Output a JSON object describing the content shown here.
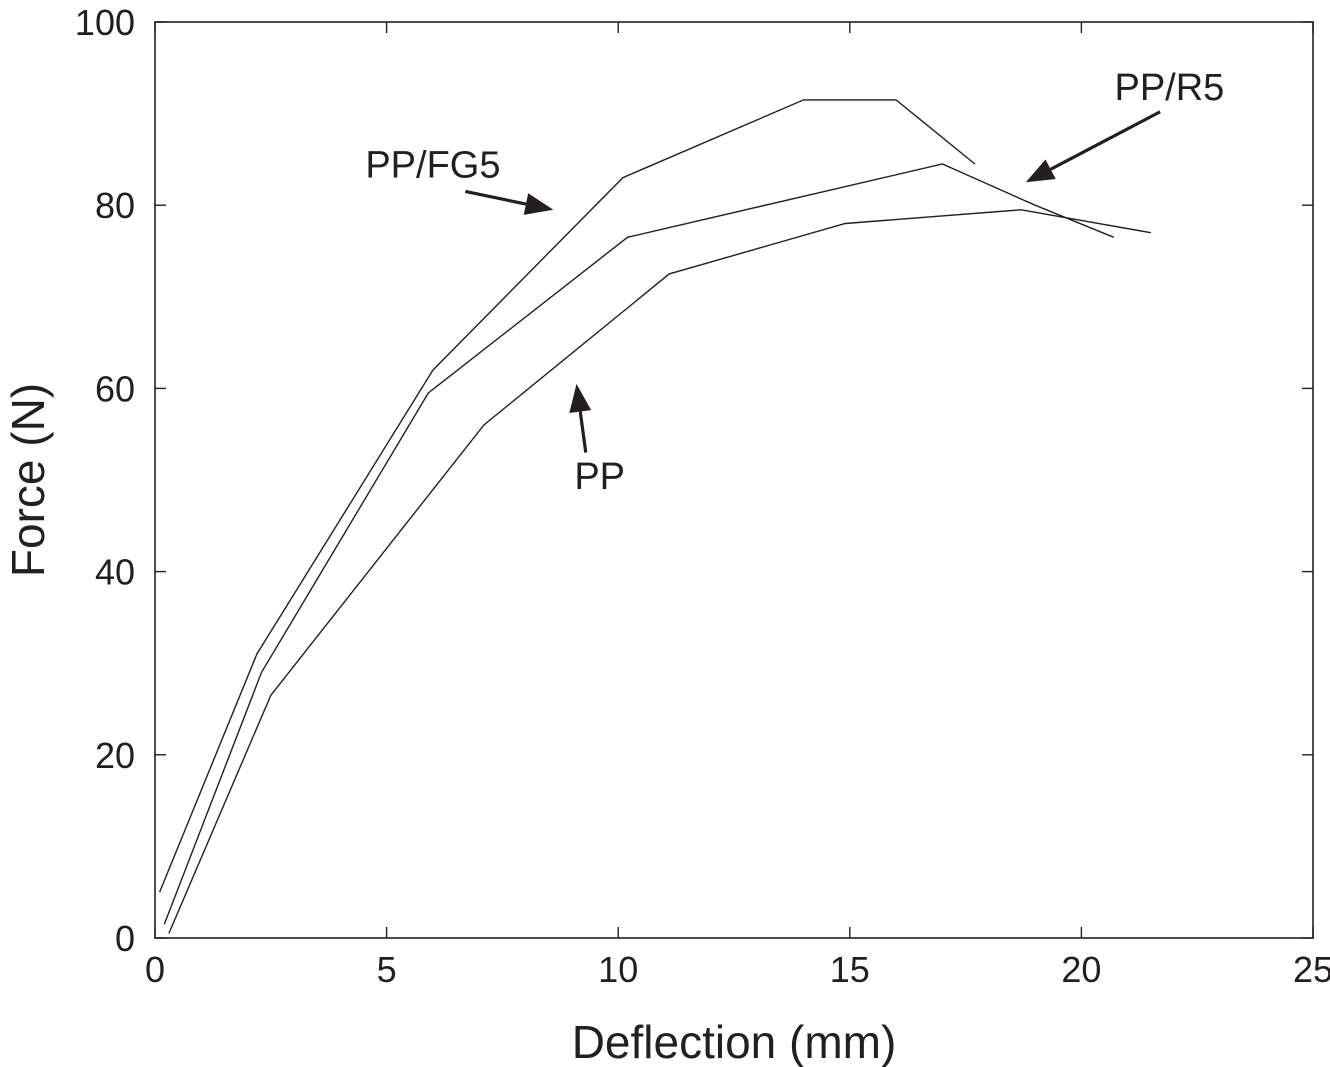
{
  "chart_data": {
    "type": "line",
    "xlabel": "Deflection (mm)",
    "ylabel": "Force (N)",
    "xlim": [
      0,
      25
    ],
    "ylim": [
      0,
      100
    ],
    "x_ticks": [
      "0",
      "5",
      "10",
      "15",
      "20",
      "25"
    ],
    "y_ticks": [
      "0",
      "20",
      "40",
      "60",
      "80",
      "100"
    ],
    "grid": false,
    "legend": "none (series identified by arrow annotations)",
    "series": [
      {
        "name": "PP/FG5",
        "points": [
          [
            0.1,
            5.0
          ],
          [
            2.2,
            31.0
          ],
          [
            6.0,
            62.0
          ],
          [
            10.1,
            83.0
          ],
          [
            14.0,
            91.5
          ],
          [
            16.0,
            91.5
          ],
          [
            17.7,
            84.5
          ]
        ]
      },
      {
        "name": "PP/R5",
        "points": [
          [
            0.2,
            1.5
          ],
          [
            2.3,
            29.0
          ],
          [
            5.9,
            59.5
          ],
          [
            10.2,
            76.5
          ],
          [
            17.0,
            84.5
          ],
          [
            19.0,
            80.0
          ],
          [
            20.7,
            76.5
          ]
        ]
      },
      {
        "name": "PP",
        "points": [
          [
            0.3,
            0.5
          ],
          [
            2.5,
            26.5
          ],
          [
            7.1,
            56.0
          ],
          [
            11.1,
            72.5
          ],
          [
            14.9,
            78.0
          ],
          [
            18.7,
            79.5
          ],
          [
            21.5,
            77.0
          ]
        ]
      }
    ],
    "annotations": [
      {
        "text": "PP/FG5",
        "label_at": [
          6.0,
          83.0
        ],
        "arrow_from": [
          6.7,
          81.5
        ],
        "arrow_to": [
          8.6,
          79.5
        ]
      },
      {
        "text": "PP/R5",
        "label_at": [
          21.9,
          91.5
        ],
        "arrow_from": [
          21.7,
          90.2
        ],
        "arrow_to": [
          18.8,
          82.5
        ]
      },
      {
        "text": "PP",
        "label_at": [
          9.6,
          49.0
        ],
        "arrow_from": [
          9.3,
          53.0
        ],
        "arrow_to": [
          9.1,
          60.5
        ]
      }
    ]
  }
}
